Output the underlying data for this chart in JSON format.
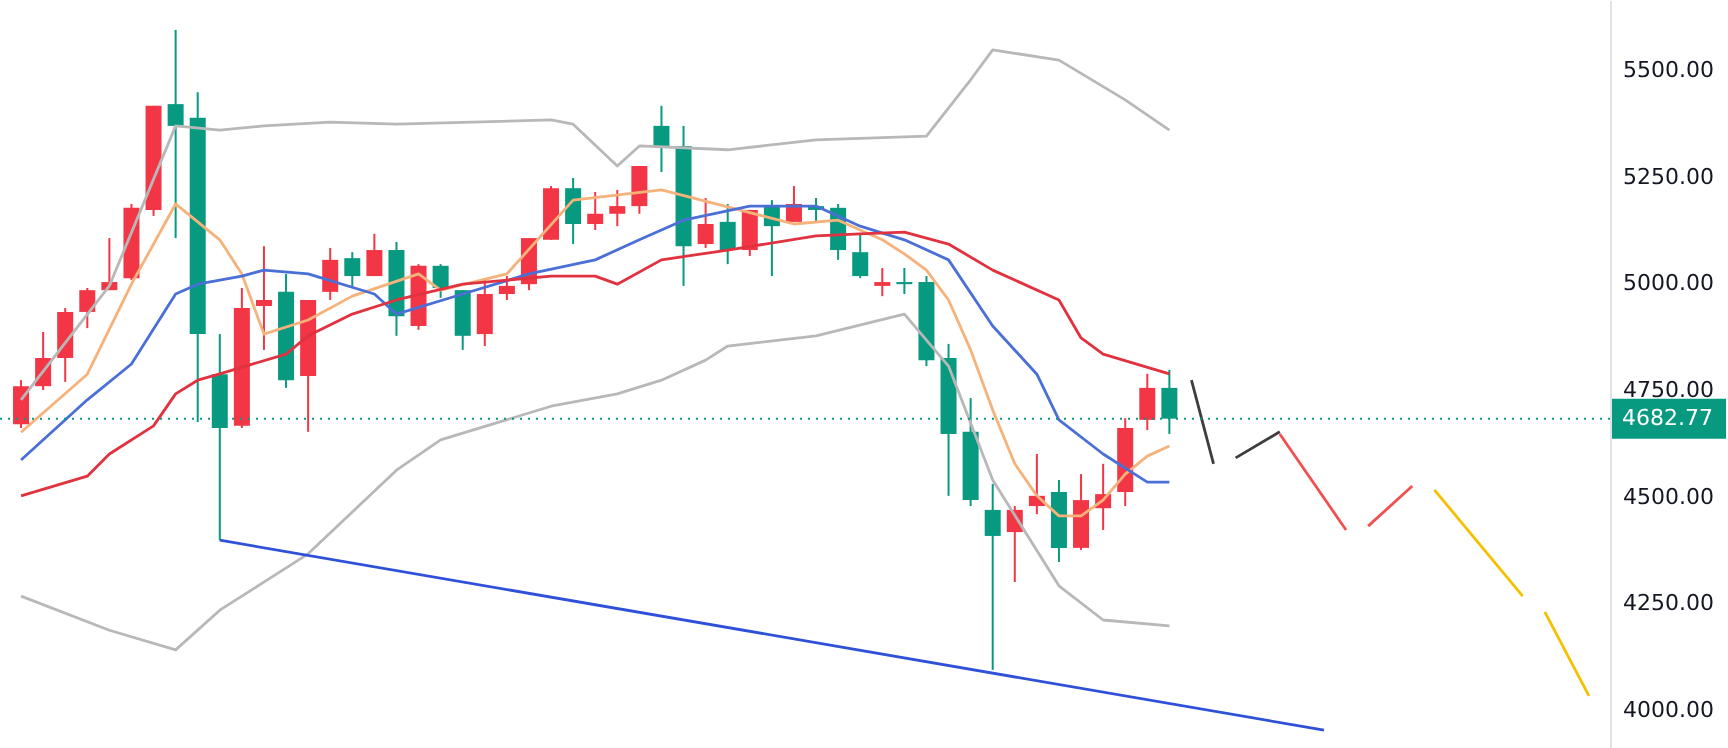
{
  "chart_data": {
    "type": "candlestick",
    "categories": [
      null,
      null,
      null,
      null,
      null,
      null,
      null,
      null,
      null,
      null,
      null,
      null,
      null,
      null,
      null,
      null,
      null,
      null,
      null,
      null,
      null,
      null,
      null,
      null,
      null,
      null,
      null,
      null,
      null,
      null,
      null,
      null,
      null,
      null,
      null,
      null,
      null,
      null,
      null,
      null,
      null,
      null,
      null,
      null,
      null,
      null,
      null,
      null,
      null,
      null,
      null,
      null,
      null,
      null,
      null,
      null,
      null,
      null,
      null,
      null,
      null,
      null,
      null,
      null,
      null,
      null,
      null,
      null,
      null,
      null,
      null,
      null
    ],
    "ohlc": [
      [
        4670,
        4773,
        4661,
        4759
      ],
      [
        4759,
        4886,
        4750,
        4825
      ],
      [
        4825,
        4942,
        4769,
        4933
      ],
      [
        4933,
        4989,
        4895,
        4984
      ],
      [
        4984,
        5106,
        4984,
        5003
      ],
      [
        5012,
        5186,
        5008,
        5177
      ],
      [
        5172,
        5416,
        5158,
        5416
      ],
      [
        5420,
        5594,
        5106,
        5369
      ],
      [
        5388,
        5448,
        4675,
        4881
      ],
      [
        4787,
        4881,
        4398,
        4661
      ],
      [
        4666,
        4989,
        4661,
        4942
      ],
      [
        4947,
        5087,
        4844,
        4961
      ],
      [
        4980,
        5022,
        4755,
        4773
      ],
      [
        4783,
        4961,
        4652,
        4961
      ],
      [
        4980,
        5083,
        4961,
        5055
      ],
      [
        5059,
        5073,
        4989,
        5017
      ],
      [
        5017,
        5116,
        5017,
        5078
      ],
      [
        5078,
        5097,
        4877,
        4923
      ],
      [
        4900,
        5045,
        4891,
        5041
      ],
      [
        5041,
        5045,
        4966,
        4989
      ],
      [
        4984,
        4984,
        4844,
        4877
      ],
      [
        4881,
        5008,
        4853,
        4975
      ],
      [
        4975,
        5017,
        4961,
        4994
      ],
      [
        4998,
        5106,
        4984,
        5106
      ],
      [
        5102,
        5228,
        5102,
        5223
      ],
      [
        5223,
        5247,
        5092,
        5139
      ],
      [
        5139,
        5214,
        5125,
        5163
      ],
      [
        5163,
        5219,
        5134,
        5181
      ],
      [
        5181,
        5275,
        5163,
        5275
      ],
      [
        5369,
        5416,
        5261,
        5322
      ],
      [
        5322,
        5369,
        4994,
        5087
      ],
      [
        5092,
        5200,
        5083,
        5139
      ],
      [
        5144,
        5186,
        5045,
        5078
      ],
      [
        5078,
        5172,
        5064,
        5172
      ],
      [
        5181,
        5195,
        5017,
        5134
      ],
      [
        5144,
        5228,
        5144,
        5186
      ],
      [
        5181,
        5200,
        5144,
        5172
      ],
      [
        5177,
        5186,
        5055,
        5078
      ],
      [
        5073,
        5116,
        5012,
        5017
      ],
      [
        4994,
        5036,
        4970,
        5003
      ],
      [
        5003,
        5036,
        4975,
        4998
      ],
      [
        5003,
        5017,
        4806,
        4820
      ],
      [
        4825,
        4858,
        4502,
        4647
      ],
      [
        4652,
        4731,
        4478,
        4492
      ],
      [
        4469,
        4530,
        4094,
        4408
      ],
      [
        4417,
        4478,
        4300,
        4469
      ],
      [
        4478,
        4600,
        4459,
        4502
      ],
      [
        4511,
        4539,
        4347,
        4380
      ],
      [
        4380,
        4553,
        4375,
        4492
      ],
      [
        4473,
        4577,
        4422,
        4506
      ],
      [
        4511,
        4684,
        4478,
        4661
      ],
      [
        4680,
        4788,
        4656,
        4755
      ],
      [
        4755,
        4797,
        4647,
        4682.77
      ],
      null,
      null,
      null,
      null,
      null,
      null,
      null,
      null,
      null,
      null,
      null,
      null,
      null,
      null,
      null,
      null,
      null,
      null,
      null
    ],
    "colors": [
      "#f23645",
      "#f23645",
      "#f23645",
      "#f23645",
      "#f23645",
      "#f23645",
      "#f23645",
      "#089981",
      "#089981",
      "#089981",
      "#f23645",
      "#f23645",
      "#089981",
      "#f23645",
      "#f23645",
      "#089981",
      "#f23645",
      "#089981",
      "#f23645",
      "#089981",
      "#089981",
      "#f23645",
      "#f23645",
      "#f23645",
      "#f23645",
      "#089981",
      "#f23645",
      "#f23645",
      "#f23645",
      "#089981",
      "#089981",
      "#f23645",
      "#089981",
      "#f23645",
      "#089981",
      "#f23645",
      "#089981",
      "#089981",
      "#089981",
      "#f23645",
      "#089981",
      "#089981",
      "#089981",
      "#089981",
      "#089981",
      "#f23645",
      "#f23645",
      "#089981",
      "#f23645",
      "#f23645",
      "#f23645",
      "#f23645",
      "#089981",
      null,
      null,
      null,
      null,
      null,
      null,
      null,
      null,
      null,
      null,
      null,
      null,
      null,
      null,
      null,
      null,
      null,
      null,
      null
    ],
    "series": [
      {
        "type": "line",
        "color": "#f5b27a",
        "values": [
          4651,
          null,
          null,
          4787,
          null,
          4998,
          null,
          5186,
          null,
          5102,
          5022,
          4881,
          null,
          4914,
          null,
          4970,
          null,
          null,
          5022,
          4984,
          null,
          null,
          5022,
          null,
          null,
          5195,
          null,
          null,
          null,
          5219,
          null,
          null,
          null,
          null,
          null,
          5139,
          null,
          5148,
          null,
          5102,
          5069,
          5031,
          4961,
          4844,
          4703,
          4577,
          4502,
          4455,
          4455,
          4492,
          4553,
          4595,
          4619,
          null,
          null,
          null,
          null,
          null,
          null,
          null,
          null,
          null,
          null,
          null,
          null,
          null,
          null,
          null,
          null,
          null,
          null,
          null
        ]
      },
      {
        "type": "line",
        "color": "#4a6fd6",
        "values": [
          4586,
          null,
          null,
          4727,
          null,
          4811,
          null,
          4975,
          4998,
          null,
          5017,
          5031,
          null,
          5022,
          null,
          null,
          4975,
          4928,
          null,
          null,
          4975,
          null,
          null,
          5022,
          null,
          null,
          5055,
          null,
          5102,
          null,
          5148,
          null,
          null,
          5181,
          null,
          null,
          5181,
          null,
          5134,
          null,
          5102,
          null,
          5055,
          null,
          4900,
          null,
          4787,
          4680,
          null,
          4600,
          null,
          4534,
          4534,
          null,
          null,
          null,
          null,
          null,
          null,
          null,
          null,
          null,
          null,
          null,
          null,
          null,
          null,
          null,
          null,
          null,
          null,
          null
        ]
      },
      {
        "type": "line",
        "color": "#e0323f",
        "values": [
          4502,
          null,
          null,
          4548,
          4600,
          null,
          4666,
          4741,
          4773,
          4788,
          null,
          null,
          4834,
          4877,
          null,
          4928,
          null,
          4961,
          null,
          null,
          4998,
          null,
          null,
          null,
          5017,
          null,
          5017,
          4998,
          null,
          5055,
          null,
          null,
          5078,
          null,
          null,
          null,
          5111,
          null,
          5116,
          null,
          5120,
          null,
          5092,
          null,
          5031,
          null,
          null,
          4961,
          4872,
          4834,
          null,
          null,
          4788,
          null,
          null,
          null,
          null,
          null,
          null,
          null,
          null,
          null,
          null,
          null,
          null,
          null,
          null,
          null,
          null,
          null,
          null,
          null
        ]
      },
      {
        "type": "line",
        "color": "#b8b8b8",
        "values": [
          4727,
          null,
          null,
          null,
          4994,
          null,
          null,
          5369,
          null,
          5359,
          null,
          5369,
          null,
          null,
          5378,
          null,
          null,
          5373,
          null,
          null,
          null,
          null,
          null,
          null,
          5383,
          5373,
          null,
          5275,
          5322,
          null,
          null,
          null,
          5313,
          null,
          null,
          null,
          5336,
          null,
          null,
          null,
          null,
          5345,
          null,
          5477,
          5547,
          null,
          null,
          5523,
          null,
          null,
          5430,
          null,
          5359,
          null,
          null,
          null,
          null,
          null,
          null,
          null,
          null,
          null,
          null,
          null,
          null,
          null,
          null,
          null,
          null,
          null,
          null,
          null
        ]
      },
      {
        "type": "line",
        "color": "#b8b8b8",
        "values": [
          4267,
          null,
          null,
          null,
          4187,
          null,
          null,
          4141,
          null,
          4234,
          null,
          null,
          null,
          4366,
          null,
          null,
          null,
          4562,
          null,
          4633,
          null,
          null,
          null,
          null,
          4712,
          null,
          null,
          4741,
          null,
          4773,
          null,
          4820,
          4853,
          null,
          null,
          null,
          4877,
          null,
          null,
          null,
          4928,
          null,
          4806,
          null,
          4539,
          null,
          null,
          4291,
          null,
          4211,
          null,
          null,
          4197,
          null,
          null,
          null,
          null,
          null,
          null,
          null,
          null,
          null,
          null,
          null,
          null,
          null,
          null,
          null,
          null,
          null,
          null,
          null
        ]
      },
      {
        "type": "line",
        "color": "#2f50d8",
        "values": [
          null,
          null,
          null,
          null,
          null,
          null,
          null,
          null,
          null,
          4398,
          null,
          null,
          null,
          null,
          null,
          null,
          null,
          null,
          null,
          null,
          null,
          null,
          null,
          null,
          null,
          null,
          null,
          null,
          null,
          null,
          null,
          null,
          null,
          null,
          null,
          null,
          null,
          null,
          null,
          null,
          null,
          null,
          null,
          null,
          null,
          null,
          null,
          null,
          null,
          null,
          null,
          null,
          null,
          null,
          null,
          null,
          null,
          null,
          null,
          3953,
          null,
          null,
          null,
          null,
          null,
          null,
          null,
          null,
          null,
          null,
          null,
          null
        ]
      },
      {
        "type": "line",
        "color": "#3d3d3d",
        "values": [
          null,
          null,
          null,
          null,
          null,
          null,
          null,
          null,
          null,
          null,
          null,
          null,
          null,
          null,
          null,
          null,
          null,
          null,
          null,
          null,
          null,
          null,
          null,
          null,
          null,
          null,
          null,
          null,
          null,
          null,
          null,
          null,
          null,
          null,
          null,
          null,
          null,
          null,
          null,
          null,
          null,
          null,
          null,
          null,
          null,
          null,
          null,
          null,
          null,
          null,
          null,
          null,
          null,
          4773,
          4577,
          null,
          null,
          null,
          null,
          null,
          null,
          null,
          null,
          null,
          null,
          null,
          null,
          null,
          null,
          null,
          null,
          null
        ]
      },
      {
        "type": "line",
        "color": "#3d3d3d",
        "values": [
          null,
          null,
          null,
          null,
          null,
          null,
          null,
          null,
          null,
          null,
          null,
          null,
          null,
          null,
          null,
          null,
          null,
          null,
          null,
          null,
          null,
          null,
          null,
          null,
          null,
          null,
          null,
          null,
          null,
          null,
          null,
          null,
          null,
          null,
          null,
          null,
          null,
          null,
          null,
          null,
          null,
          null,
          null,
          null,
          null,
          null,
          null,
          null,
          null,
          null,
          null,
          null,
          null,
          null,
          null,
          4591,
          null,
          4652,
          null,
          null,
          null,
          null,
          null,
          null,
          null,
          null,
          null,
          null,
          null,
          null,
          null,
          null
        ]
      },
      {
        "type": "line",
        "color": "#f05050",
        "values": [
          null,
          null,
          null,
          null,
          null,
          null,
          null,
          null,
          null,
          null,
          null,
          null,
          null,
          null,
          null,
          null,
          null,
          null,
          null,
          null,
          null,
          null,
          null,
          null,
          null,
          null,
          null,
          null,
          null,
          null,
          null,
          null,
          null,
          null,
          null,
          null,
          null,
          null,
          null,
          null,
          null,
          null,
          null,
          null,
          null,
          null,
          null,
          null,
          null,
          null,
          null,
          null,
          null,
          null,
          null,
          null,
          null,
          4647,
          null,
          null,
          4422,
          null,
          null,
          null,
          null,
          null,
          null,
          null,
          null,
          null,
          null,
          null
        ]
      },
      {
        "type": "line",
        "color": "#f05050",
        "values": [
          null,
          null,
          null,
          null,
          null,
          null,
          null,
          null,
          null,
          null,
          null,
          null,
          null,
          null,
          null,
          null,
          null,
          null,
          null,
          null,
          null,
          null,
          null,
          null,
          null,
          null,
          null,
          null,
          null,
          null,
          null,
          null,
          null,
          null,
          null,
          null,
          null,
          null,
          null,
          null,
          null,
          null,
          null,
          null,
          null,
          null,
          null,
          null,
          null,
          null,
          null,
          null,
          null,
          null,
          null,
          null,
          null,
          null,
          null,
          null,
          null,
          4431,
          null,
          4525,
          null,
          null,
          null,
          null,
          null,
          null,
          null,
          null
        ]
      },
      {
        "type": "line",
        "color": "#f5c000",
        "values": [
          null,
          null,
          null,
          null,
          null,
          null,
          null,
          null,
          null,
          null,
          null,
          null,
          null,
          null,
          null,
          null,
          null,
          null,
          null,
          null,
          null,
          null,
          null,
          null,
          null,
          null,
          null,
          null,
          null,
          null,
          null,
          null,
          null,
          null,
          null,
          null,
          null,
          null,
          null,
          null,
          null,
          null,
          null,
          null,
          null,
          null,
          null,
          null,
          null,
          null,
          null,
          null,
          null,
          null,
          null,
          null,
          null,
          null,
          null,
          null,
          null,
          null,
          null,
          null,
          4516,
          null,
          null,
          null,
          4267,
          null,
          null,
          null
        ]
      },
      {
        "type": "line",
        "color": "#f5c000",
        "values": [
          null,
          null,
          null,
          null,
          null,
          null,
          null,
          null,
          null,
          null,
          null,
          null,
          null,
          null,
          null,
          null,
          null,
          null,
          null,
          null,
          null,
          null,
          null,
          null,
          null,
          null,
          null,
          null,
          null,
          null,
          null,
          null,
          null,
          null,
          null,
          null,
          null,
          null,
          null,
          null,
          null,
          null,
          null,
          null,
          null,
          null,
          null,
          null,
          null,
          null,
          null,
          null,
          null,
          null,
          null,
          null,
          null,
          null,
          null,
          null,
          null,
          null,
          null,
          null,
          null,
          null,
          null,
          null,
          null,
          4230,
          null,
          4033
        ]
      }
    ],
    "ref_lines": [
      {
        "axis": "y",
        "value": 4682.77,
        "label": "4682.77",
        "color": "#089981",
        "line_style": "dotted"
      }
    ],
    "ylim": [
      3911,
      5664
    ],
    "yticks": [
      {
        "value": 4000,
        "label": "4000.00"
      },
      {
        "value": 4250,
        "label": "4250.00"
      },
      {
        "value": 4500,
        "label": "4500.00"
      },
      {
        "value": 4750,
        "label": "4750.00"
      },
      {
        "value": 5000,
        "label": "5000.00"
      },
      {
        "value": 5250,
        "label": "5250.00"
      },
      {
        "value": 5500,
        "label": "5500.00"
      }
    ],
    "tick_labels": "y",
    "grid": false
  }
}
